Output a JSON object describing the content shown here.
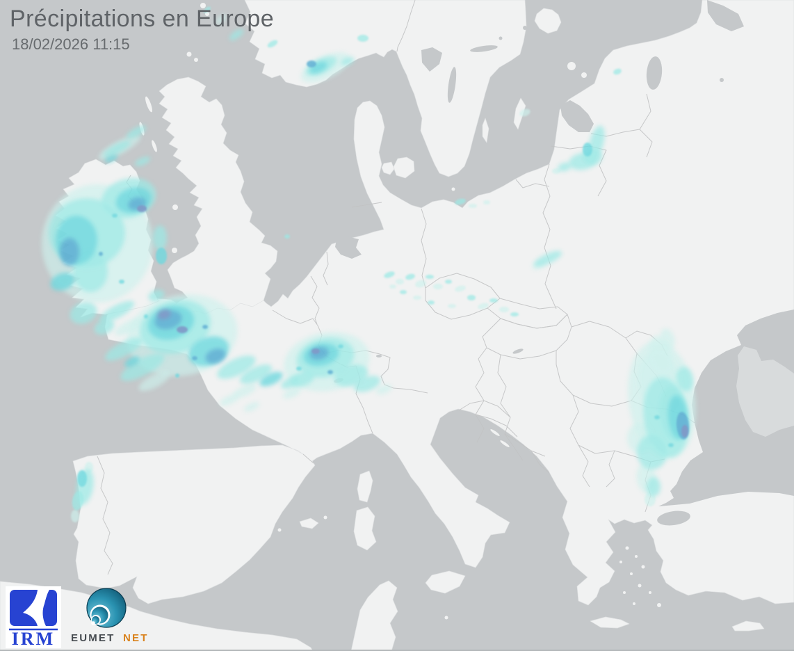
{
  "header": {
    "title": "Précipitations en Europe",
    "timestamp": "18/02/2026 11:15"
  },
  "logos": {
    "irm": {
      "label": "IRM",
      "color": "#2743d2"
    },
    "eumetnet": {
      "label_left": "EUMET",
      "label_right": "NET",
      "teal": "#1d7e9c",
      "orange": "#d9821c"
    }
  },
  "map": {
    "colors": {
      "sea": "#c5c8ca",
      "land": "#f1f2f2",
      "land_uncovered": "#d8dbdc",
      "border": "#c2c3c4",
      "coastline": "#dfe1e2"
    }
  },
  "precipitation": {
    "intensity_colors": [
      "#cdf1ec",
      "#9ce9e6",
      "#6fd8de",
      "#5caed3",
      "#7a92c4"
    ],
    "intensity_opacity": [
      0.7,
      0.78,
      0.85,
      0.9,
      0.92
    ],
    "cells": [
      [
        468,
        97,
        38,
        16,
        -25,
        1
      ],
      [
        462,
        95,
        24,
        10,
        -25,
        2
      ],
      [
        458,
        97,
        14,
        7,
        -25,
        3
      ],
      [
        448,
        92,
        7,
        5,
        0,
        4
      ],
      [
        500,
        88,
        10,
        5,
        -20,
        2
      ],
      [
        522,
        55,
        8,
        5,
        0,
        2
      ],
      [
        392,
        63,
        8,
        4,
        -30,
        2
      ],
      [
        340,
        50,
        12,
        5,
        -35,
        2
      ],
      [
        318,
        28,
        10,
        4,
        -40,
        1
      ],
      [
        298,
        14,
        6,
        3,
        -40,
        2
      ],
      [
        172,
        212,
        34,
        9,
        -28,
        1
      ],
      [
        168,
        214,
        22,
        6,
        -28,
        2
      ],
      [
        196,
        190,
        16,
        6,
        -30,
        2
      ],
      [
        205,
        232,
        12,
        5,
        -25,
        2
      ],
      [
        160,
        228,
        10,
        4,
        -25,
        3
      ],
      [
        140,
        350,
        80,
        85,
        0,
        1
      ],
      [
        125,
        335,
        55,
        50,
        0,
        2
      ],
      [
        185,
        285,
        40,
        28,
        -15,
        2
      ],
      [
        192,
        288,
        26,
        18,
        -15,
        3
      ],
      [
        197,
        293,
        13,
        9,
        -15,
        4
      ],
      [
        204,
        300,
        7,
        5,
        0,
        5
      ],
      [
        110,
        345,
        30,
        35,
        0,
        3
      ],
      [
        100,
        362,
        14,
        20,
        0,
        4
      ],
      [
        90,
        405,
        18,
        12,
        -20,
        3
      ],
      [
        130,
        390,
        25,
        30,
        0,
        2
      ],
      [
        120,
        450,
        20,
        15,
        -20,
        2
      ],
      [
        150,
        470,
        15,
        10,
        -25,
        2
      ],
      [
        230,
        342,
        10,
        18,
        0,
        2
      ],
      [
        232,
        368,
        8,
        12,
        0,
        3
      ],
      [
        225,
        425,
        12,
        8,
        -20,
        2
      ],
      [
        168,
        448,
        28,
        9,
        -28,
        2
      ],
      [
        185,
        470,
        22,
        8,
        -28,
        1
      ],
      [
        178,
        502,
        30,
        10,
        -28,
        2
      ],
      [
        205,
        528,
        35,
        12,
        -28,
        2
      ],
      [
        190,
        520,
        12,
        6,
        -28,
        3
      ],
      [
        222,
        548,
        25,
        9,
        -28,
        1
      ],
      [
        262,
        482,
        80,
        58,
        -10,
        1
      ],
      [
        252,
        470,
        52,
        38,
        -15,
        2
      ],
      [
        246,
        464,
        34,
        24,
        -15,
        3
      ],
      [
        242,
        460,
        20,
        13,
        -15,
        4
      ],
      [
        236,
        452,
        10,
        7,
        -15,
        5
      ],
      [
        262,
        474,
        8,
        5,
        0,
        5
      ],
      [
        300,
        505,
        30,
        20,
        -20,
        3
      ],
      [
        310,
        512,
        15,
        10,
        -20,
        4
      ],
      [
        340,
        528,
        30,
        12,
        -25,
        2
      ],
      [
        368,
        538,
        25,
        10,
        -25,
        2
      ],
      [
        390,
        545,
        18,
        8,
        -25,
        3
      ],
      [
        418,
        550,
        15,
        7,
        -25,
        2
      ],
      [
        352,
        562,
        18,
        7,
        -25,
        1
      ],
      [
        330,
        575,
        15,
        6,
        -25,
        1
      ],
      [
        362,
        585,
        12,
        5,
        -25,
        1
      ],
      [
        470,
        520,
        62,
        42,
        -10,
        1
      ],
      [
        468,
        514,
        42,
        28,
        -12,
        2
      ],
      [
        462,
        510,
        26,
        16,
        -12,
        3
      ],
      [
        459,
        508,
        14,
        9,
        -12,
        4
      ],
      [
        454,
        505,
        6,
        4,
        0,
        5
      ],
      [
        505,
        540,
        25,
        15,
        -15,
        2
      ],
      [
        528,
        552,
        20,
        10,
        -20,
        2
      ],
      [
        552,
        560,
        12,
        6,
        -20,
        1
      ],
      [
        435,
        545,
        18,
        10,
        -20,
        2
      ],
      [
        420,
        565,
        14,
        6,
        -25,
        1
      ],
      [
        560,
        395,
        8,
        4,
        -20,
        2
      ],
      [
        575,
        405,
        6,
        4,
        0,
        1
      ],
      [
        590,
        398,
        7,
        4,
        -15,
        2
      ],
      [
        605,
        408,
        8,
        5,
        -15,
        1
      ],
      [
        618,
        398,
        6,
        3,
        0,
        2
      ],
      [
        630,
        412,
        7,
        4,
        0,
        1
      ],
      [
        645,
        405,
        5,
        3,
        0,
        2
      ],
      [
        662,
        415,
        8,
        4,
        -15,
        1
      ],
      [
        678,
        428,
        6,
        4,
        0,
        2
      ],
      [
        695,
        440,
        8,
        4,
        -15,
        1
      ],
      [
        710,
        432,
        6,
        3,
        0,
        2
      ],
      [
        725,
        445,
        7,
        4,
        0,
        1
      ],
      [
        740,
        452,
        6,
        3,
        0,
        2
      ],
      [
        650,
        440,
        6,
        3,
        0,
        1
      ],
      [
        620,
        435,
        5,
        3,
        0,
        2
      ],
      [
        600,
        428,
        6,
        3,
        0,
        1
      ],
      [
        580,
        420,
        5,
        3,
        0,
        2
      ],
      [
        565,
        412,
        5,
        3,
        0,
        1
      ],
      [
        788,
        372,
        22,
        7,
        -25,
        2
      ],
      [
        775,
        381,
        10,
        5,
        -25,
        1
      ],
      [
        662,
        290,
        8,
        4,
        -15,
        2
      ],
      [
        680,
        296,
        6,
        3,
        0,
        1
      ],
      [
        700,
        291,
        5,
        3,
        0,
        1
      ],
      [
        858,
        205,
        10,
        25,
        15,
        2
      ],
      [
        852,
        225,
        14,
        12,
        0,
        2
      ],
      [
        838,
        232,
        20,
        12,
        -10,
        2
      ],
      [
        845,
        215,
        7,
        10,
        0,
        3
      ],
      [
        812,
        240,
        10,
        6,
        -15,
        2
      ],
      [
        800,
        246,
        6,
        4,
        0,
        1
      ],
      [
        755,
        162,
        8,
        5,
        -20,
        1
      ],
      [
        888,
        103,
        6,
        4,
        -20,
        2
      ],
      [
        413,
        340,
        4,
        3,
        0,
        2
      ],
      [
        952,
        575,
        48,
        85,
        -8,
        1
      ],
      [
        948,
        550,
        30,
        45,
        -10,
        1
      ],
      [
        958,
        600,
        32,
        58,
        -8,
        2
      ],
      [
        968,
        595,
        20,
        40,
        -5,
        2
      ],
      [
        975,
        600,
        14,
        32,
        -5,
        3
      ],
      [
        982,
        612,
        9,
        20,
        -5,
        4
      ],
      [
        985,
        620,
        5,
        9,
        0,
        5
      ],
      [
        938,
        650,
        22,
        25,
        0,
        2
      ],
      [
        920,
        630,
        18,
        22,
        0,
        1
      ],
      [
        930,
        688,
        14,
        22,
        -10,
        1
      ],
      [
        940,
        700,
        10,
        14,
        0,
        2
      ],
      [
        935,
        718,
        8,
        10,
        0,
        1
      ],
      [
        985,
        545,
        12,
        18,
        -10,
        2
      ],
      [
        950,
        510,
        15,
        28,
        -15,
        1
      ],
      [
        960,
        488,
        10,
        16,
        -15,
        1
      ],
      [
        122,
        700,
        12,
        26,
        10,
        2
      ],
      [
        118,
        688,
        7,
        12,
        0,
        3
      ],
      [
        112,
        720,
        8,
        14,
        10,
        2
      ],
      [
        128,
        672,
        6,
        8,
        0,
        1
      ],
      [
        108,
        742,
        6,
        9,
        0,
        1
      ],
      [
        165,
        310,
        4,
        3,
        0,
        3
      ],
      [
        145,
        365,
        3,
        3,
        0,
        4
      ],
      [
        175,
        405,
        4,
        3,
        0,
        3
      ],
      [
        210,
        455,
        3,
        3,
        0,
        3
      ],
      [
        280,
        515,
        4,
        3,
        0,
        4
      ],
      [
        255,
        540,
        3,
        3,
        0,
        3
      ],
      [
        295,
        470,
        4,
        3,
        0,
        4
      ],
      [
        430,
        530,
        4,
        3,
        0,
        3
      ],
      [
        490,
        498,
        4,
        3,
        0,
        3
      ],
      [
        475,
        535,
        4,
        3,
        0,
        4
      ],
      [
        965,
        640,
        4,
        3,
        0,
        3
      ],
      [
        945,
        600,
        4,
        3,
        0,
        3
      ]
    ]
  }
}
